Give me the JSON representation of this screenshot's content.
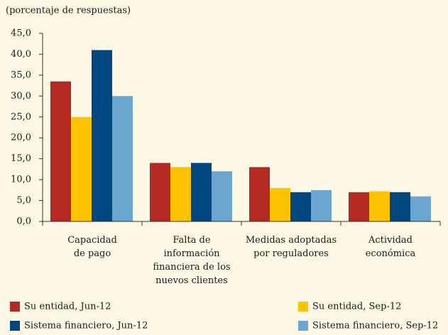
{
  "chart_data": {
    "type": "bar",
    "subtitle": "(porcentaje de respuestas)",
    "categories": [
      "Capacidad\nde pago",
      "Falta de\ninformación\nfinanciera de los\nnuevos clientes",
      "Medidas adoptadas\npor reguladores",
      "Actividad\neconómica"
    ],
    "series": [
      {
        "name": "Su entidad, Jun-12",
        "color": "#b32a22",
        "values": [
          33.5,
          14.0,
          13.0,
          7.0
        ]
      },
      {
        "name": "Su entidad, Sep-12",
        "color": "#fdc300",
        "values": [
          25.0,
          13.0,
          8.0,
          7.2
        ]
      },
      {
        "name": "Sistema financiero, Jun-12",
        "color": "#00467f",
        "values": [
          41.0,
          14.0,
          7.0,
          7.0
        ]
      },
      {
        "name": "Sistema financiero, Sep-12",
        "color": "#6aa6cf",
        "values": [
          30.0,
          12.0,
          7.5,
          6.0
        ]
      }
    ],
    "ylim": [
      0,
      45
    ],
    "yticks": [
      {
        "value": 0,
        "label": "0,0"
      },
      {
        "value": 5,
        "label": "5,0"
      },
      {
        "value": 10,
        "label": "10,0"
      },
      {
        "value": 15,
        "label": "15,0"
      },
      {
        "value": 20,
        "label": "20,0"
      },
      {
        "value": 25,
        "label": "25,0"
      },
      {
        "value": 30,
        "label": "30,0"
      },
      {
        "value": 35,
        "label": "35,0"
      },
      {
        "value": 40,
        "label": "40,0"
      },
      {
        "value": 45,
        "label": "45,0"
      }
    ],
    "legend": "bottom"
  }
}
